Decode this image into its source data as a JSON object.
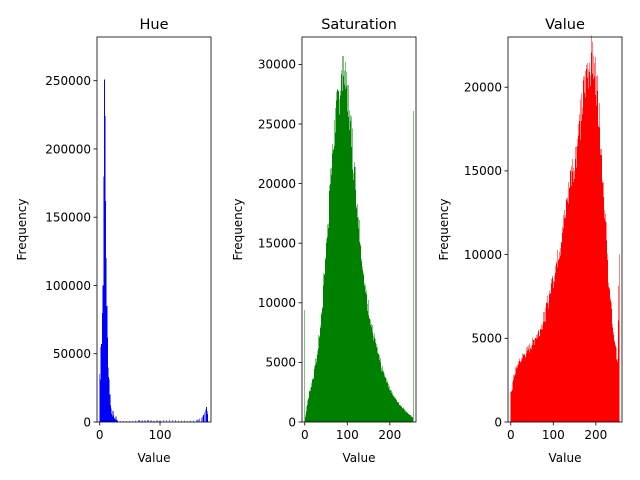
{
  "chart_data": [
    {
      "type": "bar",
      "title": "Hue",
      "xlabel": "Value",
      "ylabel": "Frequency",
      "color": "#0000ff",
      "xlim": [
        -4.5,
        184.5
      ],
      "ylim": [
        0,
        282000
      ],
      "xticks": [
        0,
        100
      ],
      "yticks": [
        0,
        50000,
        100000,
        150000,
        200000,
        250000
      ],
      "bins": [
        {
          "x": 0,
          "value": 35000
        },
        {
          "x": 1,
          "value": 31000
        },
        {
          "x": 2,
          "value": 55000
        },
        {
          "x": 3,
          "value": 57000
        },
        {
          "x": 4,
          "value": 80000
        },
        {
          "x": 5,
          "value": 100000
        },
        {
          "x": 6,
          "value": 100000
        },
        {
          "x": 7,
          "value": 180000
        },
        {
          "x": 8,
          "value": 251000
        },
        {
          "x": 9,
          "value": 224000
        },
        {
          "x": 10,
          "value": 162000
        },
        {
          "x": 11,
          "value": 120000
        },
        {
          "x": 12,
          "value": 85000
        },
        {
          "x": 13,
          "value": 62000
        },
        {
          "x": 14,
          "value": 40000
        },
        {
          "x": 15,
          "value": 33000
        },
        {
          "x": 16,
          "value": 31000
        },
        {
          "x": 17,
          "value": 20000
        },
        {
          "x": 18,
          "value": 12000
        },
        {
          "x": 19,
          "value": 6000
        },
        {
          "x": 20,
          "value": 10000
        },
        {
          "x": 21,
          "value": 4000
        },
        {
          "x": 22,
          "value": 8000
        },
        {
          "x": 23,
          "value": 5000
        },
        {
          "x": 24,
          "value": 3000
        },
        {
          "x": 25,
          "value": 2500
        },
        {
          "x": 26,
          "value": 2000
        },
        {
          "x": 27,
          "value": 4000
        },
        {
          "x": 28,
          "value": 1500
        },
        {
          "x": 29,
          "value": 1200
        },
        {
          "x": 30,
          "value": 1000
        },
        {
          "x": 35,
          "value": 700
        },
        {
          "x": 40,
          "value": 800
        },
        {
          "x": 45,
          "value": 600
        },
        {
          "x": 50,
          "value": 700
        },
        {
          "x": 55,
          "value": 900
        },
        {
          "x": 60,
          "value": 1200
        },
        {
          "x": 65,
          "value": 1500
        },
        {
          "x": 70,
          "value": 1200
        },
        {
          "x": 75,
          "value": 1000
        },
        {
          "x": 80,
          "value": 1300
        },
        {
          "x": 85,
          "value": 1100
        },
        {
          "x": 90,
          "value": 900
        },
        {
          "x": 95,
          "value": 1000
        },
        {
          "x": 100,
          "value": 1100
        },
        {
          "x": 105,
          "value": 1300
        },
        {
          "x": 110,
          "value": 1600
        },
        {
          "x": 115,
          "value": 2000
        },
        {
          "x": 120,
          "value": 1600
        },
        {
          "x": 125,
          "value": 1300
        },
        {
          "x": 130,
          "value": 1000
        },
        {
          "x": 135,
          "value": 1200
        },
        {
          "x": 140,
          "value": 1100
        },
        {
          "x": 145,
          "value": 900
        },
        {
          "x": 150,
          "value": 1000
        },
        {
          "x": 155,
          "value": 1200
        },
        {
          "x": 160,
          "value": 1400
        },
        {
          "x": 163,
          "value": 2000
        },
        {
          "x": 166,
          "value": 2500
        },
        {
          "x": 168,
          "value": 3000
        },
        {
          "x": 170,
          "value": 4000
        },
        {
          "x": 172,
          "value": 5000
        },
        {
          "x": 174,
          "value": 7000
        },
        {
          "x": 176,
          "value": 9000
        },
        {
          "x": 177,
          "value": 11000
        },
        {
          "x": 178,
          "value": 8000
        },
        {
          "x": 179,
          "value": 6000
        }
      ]
    },
    {
      "type": "bar",
      "title": "Saturation",
      "xlabel": "Value",
      "ylabel": "Frequency",
      "color": "#008000",
      "xlim": [
        -6.5,
        261.5
      ],
      "ylim": [
        0,
        32300
      ],
      "xticks": [
        0,
        100,
        200
      ],
      "yticks": [
        0,
        5000,
        10000,
        15000,
        20000,
        25000,
        30000
      ],
      "anchors": [
        [
          0,
          9400
        ],
        [
          1,
          400
        ],
        [
          3,
          900
        ],
        [
          5,
          1300
        ],
        [
          10,
          2300
        ],
        [
          20,
          3800
        ],
        [
          30,
          5800
        ],
        [
          40,
          9200
        ],
        [
          50,
          14500
        ],
        [
          60,
          20000
        ],
        [
          70,
          24500
        ],
        [
          80,
          27500
        ],
        [
          90,
          29000
        ],
        [
          100,
          27500
        ],
        [
          110,
          24000
        ],
        [
          120,
          19500
        ],
        [
          130,
          15500
        ],
        [
          140,
          11500
        ],
        [
          150,
          9500
        ],
        [
          160,
          7500
        ],
        [
          170,
          6000
        ],
        [
          180,
          4600
        ],
        [
          190,
          3600
        ],
        [
          200,
          2800
        ],
        [
          210,
          2100
        ],
        [
          220,
          1600
        ],
        [
          230,
          1200
        ],
        [
          240,
          800
        ],
        [
          250,
          500
        ],
        [
          252,
          400
        ]
      ],
      "spikes": [
        [
          90,
          30700
        ],
        [
          94,
          29500
        ],
        [
          255,
          26100
        ]
      ]
    },
    {
      "type": "bar",
      "title": "Value",
      "xlabel": "Value",
      "ylabel": "Frequency",
      "color": "#ff0000",
      "xlim": [
        -6.5,
        261.5
      ],
      "ylim": [
        0,
        23000
      ],
      "xticks": [
        0,
        100,
        200
      ],
      "yticks": [
        0,
        5000,
        10000,
        15000,
        20000
      ],
      "anchors": [
        [
          0,
          1800
        ],
        [
          3,
          2000
        ],
        [
          8,
          2800
        ],
        [
          15,
          3300
        ],
        [
          25,
          3800
        ],
        [
          40,
          4300
        ],
        [
          55,
          4900
        ],
        [
          70,
          5600
        ],
        [
          80,
          6300
        ],
        [
          90,
          7500
        ],
        [
          100,
          8600
        ],
        [
          110,
          9800
        ],
        [
          120,
          11000
        ],
        [
          130,
          12800
        ],
        [
          140,
          14500
        ],
        [
          150,
          15600
        ],
        [
          160,
          17300
        ],
        [
          170,
          19300
        ],
        [
          180,
          21000
        ],
        [
          190,
          21700
        ],
        [
          200,
          20600
        ],
        [
          210,
          17500
        ],
        [
          220,
          13000
        ],
        [
          230,
          8500
        ],
        [
          240,
          5500
        ],
        [
          248,
          4200
        ],
        [
          252,
          3500
        ],
        [
          255,
          10000
        ]
      ],
      "spikes": [
        [
          195,
          21900
        ]
      ]
    }
  ]
}
